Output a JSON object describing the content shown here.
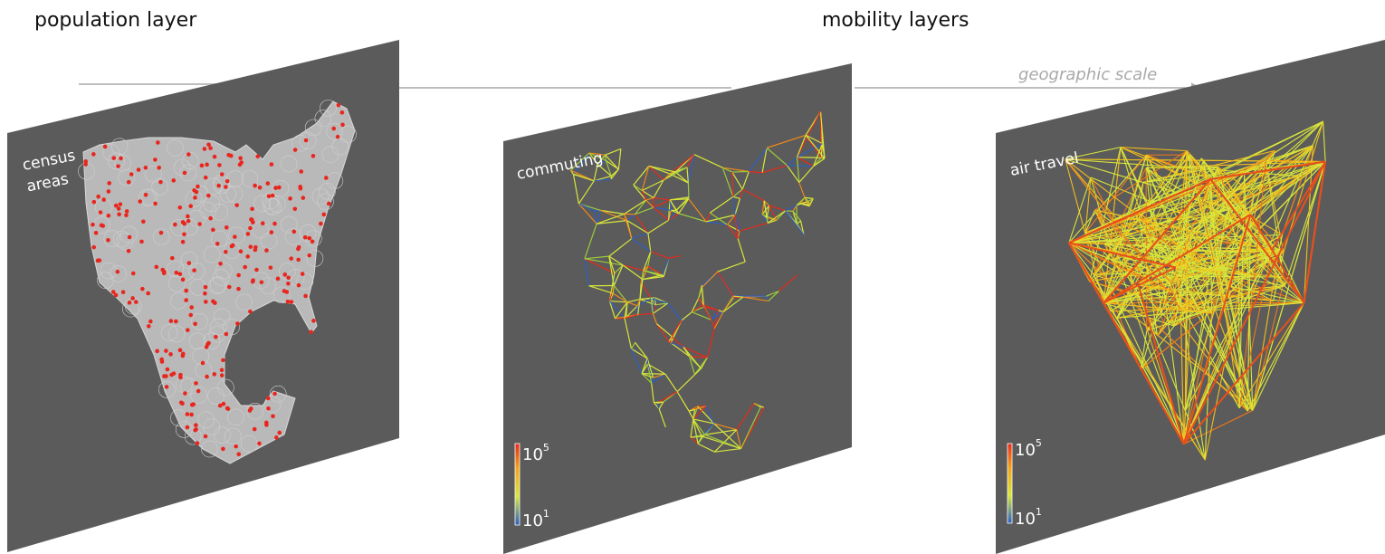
{
  "headings": {
    "population": "population layer",
    "mobility": "mobility layers"
  },
  "axis": {
    "label": "geographic scale"
  },
  "panels": [
    {
      "id": "census",
      "label_lines": [
        "census",
        "areas"
      ]
    },
    {
      "id": "commuting",
      "label_lines": [
        "commuting"
      ],
      "colorbar": {
        "max_base": "10",
        "max_exp": "5",
        "min_base": "10",
        "min_exp": "1"
      }
    },
    {
      "id": "air",
      "label_lines": [
        "air travel"
      ],
      "colorbar": {
        "max_base": "10",
        "max_exp": "5",
        "min_base": "10",
        "min_exp": "1"
      }
    }
  ],
  "colors": {
    "panel": "#5b5b5b",
    "land": "#b9b9b9",
    "node": "#e8261e",
    "arrow": "#a9a9a9",
    "low": "#2b5fc4",
    "mid": "#d8e63a",
    "high": "#e82a1a"
  }
}
